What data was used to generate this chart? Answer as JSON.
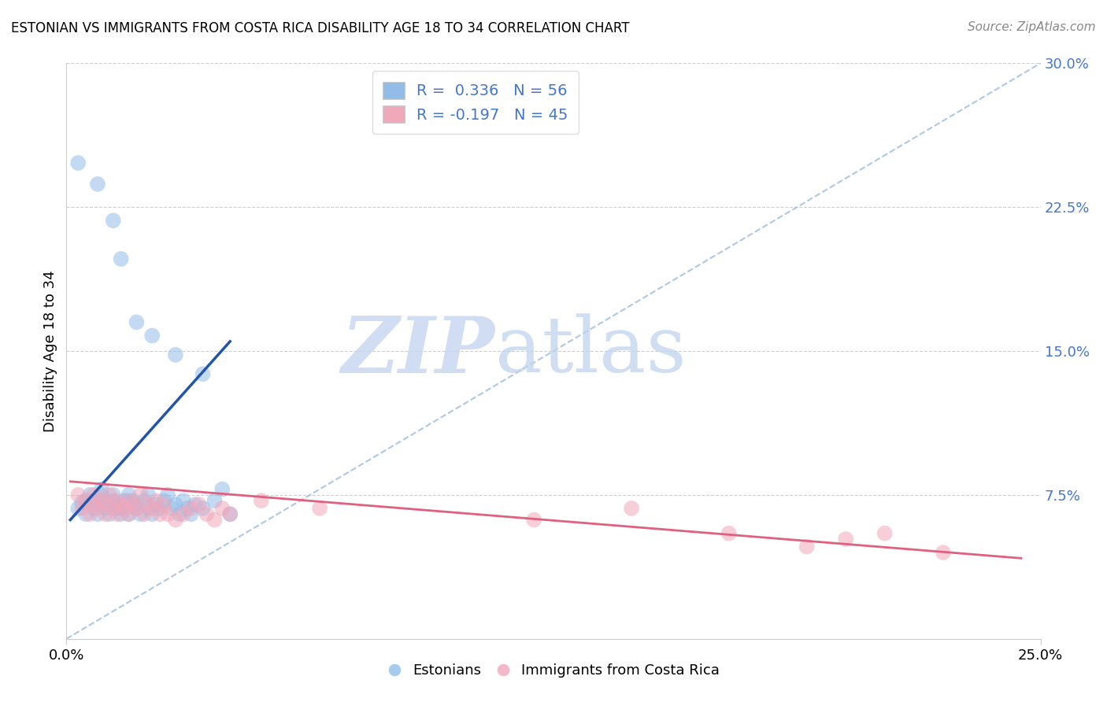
{
  "title": "ESTONIAN VS IMMIGRANTS FROM COSTA RICA DISABILITY AGE 18 TO 34 CORRELATION CHART",
  "source": "Source: ZipAtlas.com",
  "ylabel": "Disability Age 18 to 34",
  "xlim": [
    0.0,
    0.25
  ],
  "ylim": [
    0.0,
    0.3
  ],
  "blue_color": "#92BDE8",
  "pink_color": "#F0A8BB",
  "blue_line_color": "#2255AA",
  "pink_line_color": "#E06080",
  "diag_line_color": "#99BBDD",
  "watermark_zip_color": "#C8D8F0",
  "watermark_atlas_color": "#C0D0E8",
  "background_color": "#FFFFFF",
  "grid_color": "#BBBBBB",
  "ytick_color": "#4477CC",
  "blue_scatter": [
    [
      0.003,
      0.068
    ],
    [
      0.004,
      0.071
    ],
    [
      0.005,
      0.065
    ],
    [
      0.005,
      0.072
    ],
    [
      0.006,
      0.075
    ],
    [
      0.007,
      0.068
    ],
    [
      0.007,
      0.072
    ],
    [
      0.008,
      0.065
    ],
    [
      0.008,
      0.07
    ],
    [
      0.009,
      0.078
    ],
    [
      0.009,
      0.075
    ],
    [
      0.01,
      0.068
    ],
    [
      0.01,
      0.072
    ],
    [
      0.011,
      0.065
    ],
    [
      0.011,
      0.07
    ],
    [
      0.012,
      0.075
    ],
    [
      0.012,
      0.072
    ],
    [
      0.013,
      0.068
    ],
    [
      0.013,
      0.07
    ],
    [
      0.014,
      0.065
    ],
    [
      0.014,
      0.068
    ],
    [
      0.015,
      0.07
    ],
    [
      0.015,
      0.072
    ],
    [
      0.016,
      0.075
    ],
    [
      0.016,
      0.065
    ],
    [
      0.017,
      0.072
    ],
    [
      0.018,
      0.068
    ],
    [
      0.018,
      0.07
    ],
    [
      0.019,
      0.065
    ],
    [
      0.02,
      0.072
    ],
    [
      0.021,
      0.075
    ],
    [
      0.021,
      0.068
    ],
    [
      0.022,
      0.065
    ],
    [
      0.023,
      0.07
    ],
    [
      0.024,
      0.068
    ],
    [
      0.025,
      0.072
    ],
    [
      0.026,
      0.075
    ],
    [
      0.027,
      0.068
    ],
    [
      0.028,
      0.07
    ],
    [
      0.029,
      0.065
    ],
    [
      0.03,
      0.072
    ],
    [
      0.031,
      0.068
    ],
    [
      0.032,
      0.065
    ],
    [
      0.033,
      0.07
    ],
    [
      0.035,
      0.068
    ],
    [
      0.038,
      0.072
    ],
    [
      0.04,
      0.078
    ],
    [
      0.042,
      0.065
    ],
    [
      0.008,
      0.237
    ],
    [
      0.012,
      0.218
    ],
    [
      0.003,
      0.248
    ],
    [
      0.014,
      0.198
    ],
    [
      0.018,
      0.165
    ],
    [
      0.022,
      0.158
    ],
    [
      0.028,
      0.148
    ],
    [
      0.035,
      0.138
    ]
  ],
  "pink_scatter": [
    [
      0.003,
      0.075
    ],
    [
      0.004,
      0.068
    ],
    [
      0.005,
      0.072
    ],
    [
      0.006,
      0.065
    ],
    [
      0.007,
      0.07
    ],
    [
      0.007,
      0.075
    ],
    [
      0.008,
      0.068
    ],
    [
      0.009,
      0.072
    ],
    [
      0.01,
      0.065
    ],
    [
      0.01,
      0.07
    ],
    [
      0.011,
      0.075
    ],
    [
      0.012,
      0.068
    ],
    [
      0.013,
      0.072
    ],
    [
      0.013,
      0.065
    ],
    [
      0.014,
      0.07
    ],
    [
      0.015,
      0.068
    ],
    [
      0.016,
      0.072
    ],
    [
      0.016,
      0.065
    ],
    [
      0.017,
      0.07
    ],
    [
      0.018,
      0.068
    ],
    [
      0.019,
      0.075
    ],
    [
      0.02,
      0.065
    ],
    [
      0.021,
      0.07
    ],
    [
      0.022,
      0.068
    ],
    [
      0.023,
      0.072
    ],
    [
      0.024,
      0.065
    ],
    [
      0.025,
      0.07
    ],
    [
      0.026,
      0.065
    ],
    [
      0.028,
      0.062
    ],
    [
      0.03,
      0.065
    ],
    [
      0.032,
      0.068
    ],
    [
      0.034,
      0.07
    ],
    [
      0.036,
      0.065
    ],
    [
      0.038,
      0.062
    ],
    [
      0.04,
      0.068
    ],
    [
      0.042,
      0.065
    ],
    [
      0.05,
      0.072
    ],
    [
      0.065,
      0.068
    ],
    [
      0.12,
      0.062
    ],
    [
      0.145,
      0.068
    ],
    [
      0.17,
      0.055
    ],
    [
      0.19,
      0.048
    ],
    [
      0.2,
      0.052
    ],
    [
      0.21,
      0.055
    ],
    [
      0.225,
      0.045
    ]
  ],
  "blue_line_x": [
    0.001,
    0.042
  ],
  "blue_line_y": [
    0.062,
    0.155
  ],
  "pink_line_x": [
    0.001,
    0.245
  ],
  "pink_line_y": [
    0.082,
    0.042
  ],
  "diag_line_x": [
    0.0,
    0.25
  ],
  "diag_line_y": [
    0.0,
    0.3
  ]
}
